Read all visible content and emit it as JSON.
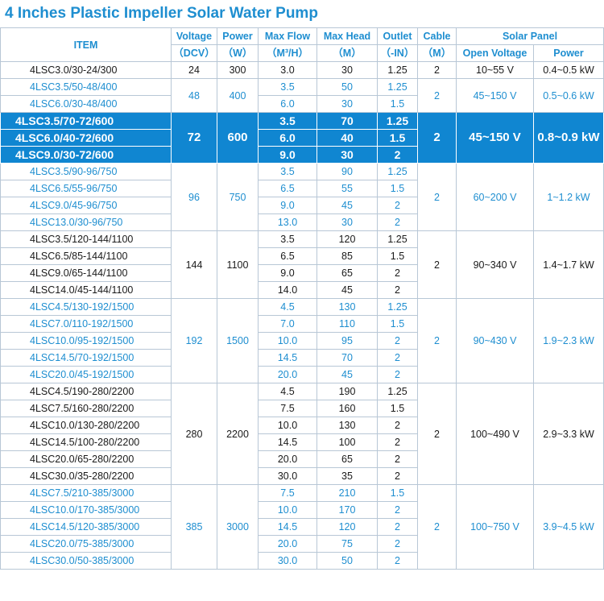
{
  "title": "4 Inches Plastic Impeller Solar Water Pump",
  "headers": {
    "item": "ITEM",
    "voltage": "Voltage",
    "voltage_unit": "（DCV）",
    "power": "Power",
    "power_unit": "（W）",
    "maxflow": "Max Flow",
    "maxflow_unit": "（M³/H）",
    "maxhead": "Max Head",
    "maxhead_unit": "（M）",
    "outlet": "Outlet",
    "outlet_unit": "（-IN）",
    "cable": "Cable",
    "cable_unit": "（M）",
    "solar_panel": "Solar Panel",
    "open_voltage": "Open Voltage",
    "sp_power": "Power"
  },
  "groups": [
    {
      "style": "black",
      "voltage": "24",
      "power": "300",
      "cable": "2",
      "open_voltage": "10~55 V",
      "sp_power": "0.4~0.5 kW",
      "rows": [
        [
          "4LSC3.0/30-24/300",
          "3.0",
          "30",
          "1.25"
        ]
      ]
    },
    {
      "style": "blue",
      "voltage": "48",
      "power": "400",
      "cable": "2",
      "open_voltage": "45~150 V",
      "sp_power": "0.5~0.6 kW",
      "rows": [
        [
          "4LSC3.5/50-48/400",
          "3.5",
          "50",
          "1.25"
        ],
        [
          "4LSC6.0/30-48/400",
          "6.0",
          "30",
          "1.5"
        ]
      ]
    },
    {
      "style": "hl",
      "voltage": "72",
      "power": "600",
      "cable": "2",
      "open_voltage": "45~150 V",
      "sp_power": "0.8~0.9 kW",
      "rows": [
        [
          "4LSC3.5/70-72/600",
          "3.5",
          "70",
          "1.25"
        ],
        [
          "4LSC6.0/40-72/600",
          "6.0",
          "40",
          "1.5"
        ],
        [
          "4LSC9.0/30-72/600",
          "9.0",
          "30",
          "2"
        ]
      ]
    },
    {
      "style": "blue",
      "voltage": "96",
      "power": "750",
      "cable": "2",
      "open_voltage": "60~200 V",
      "sp_power": "1~1.2 kW",
      "rows": [
        [
          "4LSC3.5/90-96/750",
          "3.5",
          "90",
          "1.25"
        ],
        [
          "4LSC6.5/55-96/750",
          "6.5",
          "55",
          "1.5"
        ],
        [
          "4LSC9.0/45-96/750",
          "9.0",
          "45",
          "2"
        ],
        [
          "4LSC13.0/30-96/750",
          "13.0",
          "30",
          "2"
        ]
      ]
    },
    {
      "style": "black",
      "voltage": "144",
      "power": "1100",
      "cable": "2",
      "open_voltage": "90~340 V",
      "sp_power": "1.4~1.7 kW",
      "rows": [
        [
          "4LSC3.5/120-144/1100",
          "3.5",
          "120",
          "1.25"
        ],
        [
          "4LSC6.5/85-144/1100",
          "6.5",
          "85",
          "1.5"
        ],
        [
          "4LSC9.0/65-144/1100",
          "9.0",
          "65",
          "2"
        ],
        [
          "4LSC14.0/45-144/1100",
          "14.0",
          "45",
          "2"
        ]
      ]
    },
    {
      "style": "blue",
      "voltage": "192",
      "power": "1500",
      "cable": "2",
      "open_voltage": "90~430 V",
      "sp_power": "1.9~2.3 kW",
      "rows": [
        [
          "4LSC4.5/130-192/1500",
          "4.5",
          "130",
          "1.25"
        ],
        [
          "4LSC7.0/110-192/1500",
          "7.0",
          "110",
          "1.5"
        ],
        [
          "4LSC10.0/95-192/1500",
          "10.0",
          "95",
          "2"
        ],
        [
          "4LSC14.5/70-192/1500",
          "14.5",
          "70",
          "2"
        ],
        [
          "4LSC20.0/45-192/1500",
          "20.0",
          "45",
          "2"
        ]
      ]
    },
    {
      "style": "black",
      "voltage": "280",
      "power": "2200",
      "cable": "2",
      "open_voltage": "100~490 V",
      "sp_power": "2.9~3.3 kW",
      "rows": [
        [
          "4LSC4.5/190-280/2200",
          "4.5",
          "190",
          "1.25"
        ],
        [
          "4LSC7.5/160-280/2200",
          "7.5",
          "160",
          "1.5"
        ],
        [
          "4LSC10.0/130-280/2200",
          "10.0",
          "130",
          "2"
        ],
        [
          "4LSC14.5/100-280/2200",
          "14.5",
          "100",
          "2"
        ],
        [
          "4LSC20.0/65-280/2200",
          "20.0",
          "65",
          "2"
        ],
        [
          "4LSC30.0/35-280/2200",
          "30.0",
          "35",
          "2"
        ]
      ]
    },
    {
      "style": "blue",
      "voltage": "385",
      "power": "3000",
      "cable": "2",
      "open_voltage": "100~750 V",
      "sp_power": "3.9~4.5 kW",
      "rows": [
        [
          "4LSC7.5/210-385/3000",
          "7.5",
          "210",
          "1.5"
        ],
        [
          "4LSC10.0/170-385/3000",
          "10.0",
          "170",
          "2"
        ],
        [
          "4LSC14.5/120-385/3000",
          "14.5",
          "120",
          "2"
        ],
        [
          "4LSC20.0/75-385/3000",
          "20.0",
          "75",
          "2"
        ],
        [
          "4LSC30.0/50-385/3000",
          "30.0",
          "50",
          "2"
        ]
      ]
    }
  ]
}
